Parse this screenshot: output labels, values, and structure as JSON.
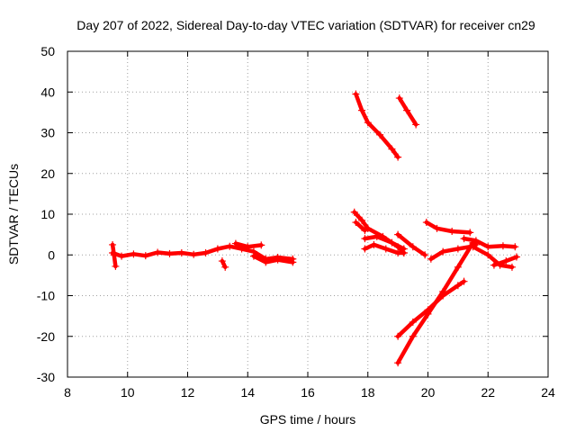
{
  "chart_data": {
    "type": "scatter",
    "title": "Day 207 of 2022, Sidereal Day-to-day VTEC variation (SDTVAR) for receiver cn29",
    "xlabel": "GPS time / hours",
    "ylabel": "SDTVAR / TECUs",
    "xlim": [
      8,
      24
    ],
    "ylim": [
      -30,
      50
    ],
    "xticks": [
      "8",
      "10",
      "12",
      "14",
      "16",
      "18",
      "20",
      "22",
      "24"
    ],
    "yticks": [
      "-30",
      "-20",
      "-10",
      "0",
      "10",
      "20",
      "30",
      "40",
      "50"
    ],
    "grid": true,
    "marker": "plus",
    "color": "#ff0000",
    "series": [
      {
        "x": [
          9.5,
          9.8,
          10.2,
          10.6,
          11.0,
          11.4,
          11.8,
          12.2,
          12.6,
          13.0,
          13.4,
          13.8,
          14.2,
          14.6,
          15.0,
          15.5
        ],
        "y": [
          0.5,
          -0.3,
          0.2,
          -0.2,
          0.6,
          0.3,
          0.5,
          0.1,
          0.5,
          1.5,
          2.1,
          1.5,
          0.8,
          -1.0,
          -0.6,
          -1.0
        ]
      },
      {
        "x": [
          9.5,
          9.55,
          9.6
        ],
        "y": [
          2.5,
          0.0,
          -2.8
        ]
      },
      {
        "x": [
          13.15,
          13.25
        ],
        "y": [
          -1.5,
          -3.0
        ]
      },
      {
        "x": [
          13.6,
          14.0,
          14.45
        ],
        "y": [
          2.8,
          2.0,
          2.4
        ]
      },
      {
        "x": [
          14.2,
          14.6,
          15.0,
          15.5
        ],
        "y": [
          -0.3,
          -1.8,
          -1.2,
          -1.8
        ]
      },
      {
        "x": [
          17.6,
          17.8,
          18.0,
          18.4,
          18.8,
          19.0
        ],
        "y": [
          39.5,
          35.5,
          32.5,
          29.5,
          26.0,
          24.0
        ]
      },
      {
        "x": [
          19.05,
          19.3,
          19.6
        ],
        "y": [
          38.5,
          35.5,
          32.0
        ]
      },
      {
        "x": [
          17.55,
          17.8,
          18.0,
          18.5,
          19.0,
          19.2
        ],
        "y": [
          10.5,
          8.5,
          6.5,
          4.5,
          2.0,
          0.5
        ]
      },
      {
        "x": [
          17.6,
          17.9
        ],
        "y": [
          8.0,
          6.0
        ]
      },
      {
        "x": [
          17.9,
          18.3,
          18.8,
          19.2
        ],
        "y": [
          4.0,
          4.5,
          3.0,
          1.5
        ]
      },
      {
        "x": [
          17.9,
          18.2,
          18.6,
          19.0,
          19.2
        ],
        "y": [
          1.5,
          2.5,
          1.5,
          0.5,
          0.5
        ]
      },
      {
        "x": [
          19.0,
          19.5,
          19.9
        ],
        "y": [
          5.0,
          2.0,
          0.0
        ]
      },
      {
        "x": [
          19.95,
          20.3,
          20.8,
          21.4
        ],
        "y": [
          8.0,
          6.5,
          5.8,
          5.5
        ]
      },
      {
        "x": [
          20.1,
          20.5,
          21.0,
          21.4,
          21.6
        ],
        "y": [
          -1.0,
          0.8,
          1.5,
          2.0,
          2.5
        ]
      },
      {
        "x": [
          21.2,
          21.6,
          22.0,
          22.5,
          22.9
        ],
        "y": [
          4.0,
          3.5,
          2.0,
          2.2,
          2.0
        ]
      },
      {
        "x": [
          21.5,
          22.0,
          22.4,
          22.8
        ],
        "y": [
          2.0,
          0.0,
          -2.5,
          -3.0
        ]
      },
      {
        "x": [
          22.2,
          22.6,
          22.95
        ],
        "y": [
          -2.5,
          -1.5,
          -0.5
        ]
      },
      {
        "x": [
          19.0,
          19.5,
          20.0,
          20.5,
          21.0,
          21.2
        ],
        "y": [
          -20.0,
          -16.5,
          -13.5,
          -10.0,
          -7.5,
          -6.5
        ]
      },
      {
        "x": [
          19.0,
          19.5,
          20.0,
          20.5,
          21.0,
          21.5
        ],
        "y": [
          -26.5,
          -20.0,
          -14.5,
          -9.0,
          -3.0,
          3.0
        ]
      }
    ]
  }
}
